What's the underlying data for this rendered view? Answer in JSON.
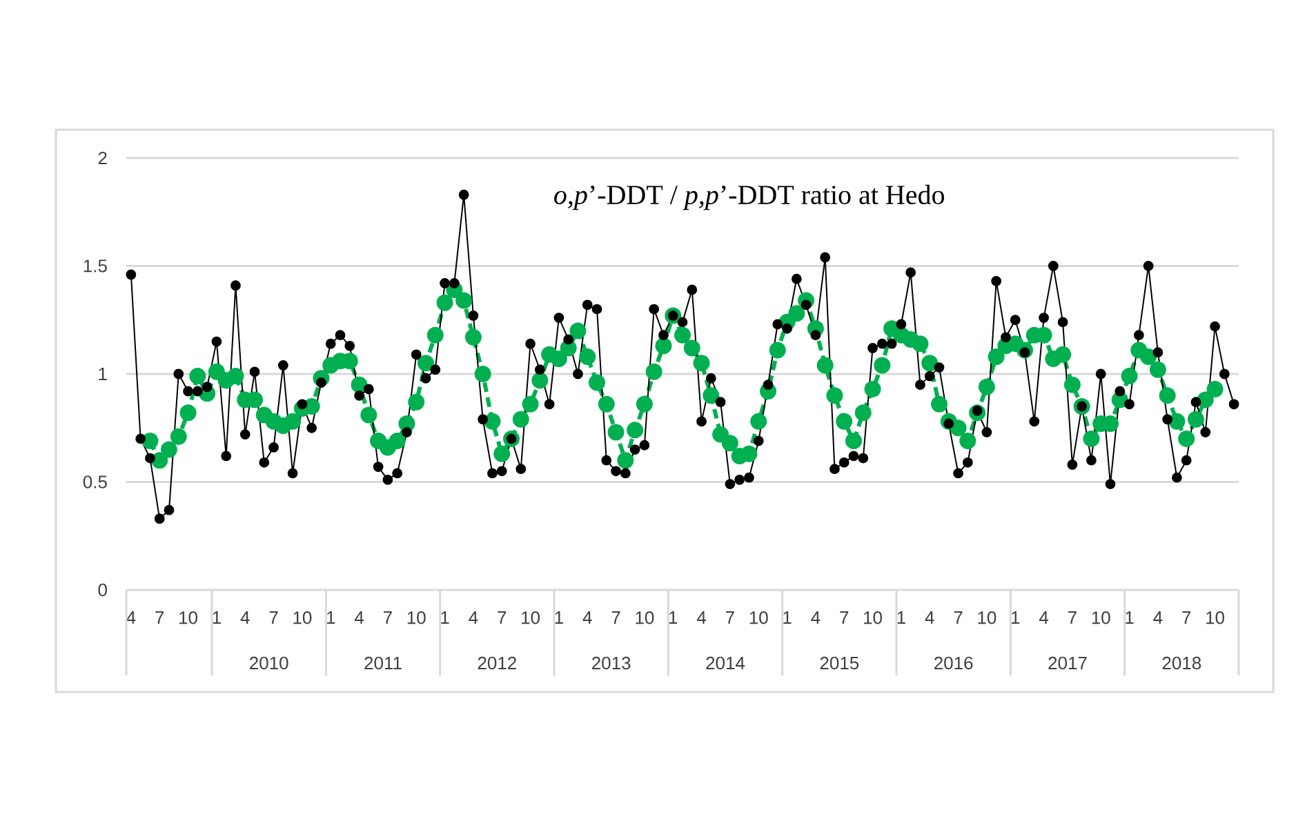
{
  "chart_data": {
    "type": "line",
    "title": "*o,p*’-DDT / *p,p*’-DDT ratio at Hedo",
    "categories": [
      "4",
      null,
      null,
      "7",
      null,
      null,
      "10",
      null,
      null,
      "1",
      null,
      null,
      "4",
      null,
      null,
      "7",
      null,
      null,
      "10",
      null,
      null,
      "1",
      null,
      null,
      "4",
      null,
      null,
      "7",
      null,
      null,
      "10",
      null,
      null,
      "1",
      null,
      null,
      "4",
      null,
      null,
      "7",
      null,
      null,
      "10",
      null,
      null,
      "1",
      null,
      null,
      "4",
      null,
      null,
      "7",
      null,
      null,
      "10",
      null,
      null,
      "1",
      null,
      null,
      "4",
      null,
      null,
      "7",
      null,
      null,
      "10",
      null,
      null,
      "1",
      null,
      null,
      "4",
      null,
      null,
      "7",
      null,
      null,
      "10",
      null,
      null,
      "1",
      null,
      null,
      "4",
      null,
      null,
      "7",
      null,
      null,
      "10",
      null,
      null,
      "1",
      null,
      null,
      "4",
      null,
      null,
      "7",
      null,
      null,
      "10",
      null,
      null,
      "1",
      null,
      null,
      "4",
      null,
      null,
      "7",
      null,
      null,
      "10",
      null,
      null
    ],
    "series": [
      {
        "color": "#000000",
        "marker": "circle",
        "line_style": "solid",
        "values": [
          1.46,
          0.7,
          0.61,
          0.33,
          0.37,
          1.0,
          0.92,
          0.92,
          0.94,
          1.15,
          0.62,
          1.41,
          0.72,
          1.01,
          0.59,
          0.66,
          1.04,
          0.54,
          0.86,
          0.75,
          0.96,
          1.14,
          1.18,
          1.13,
          0.9,
          0.93,
          0.57,
          0.51,
          0.54,
          0.73,
          1.09,
          0.98,
          1.02,
          1.42,
          1.42,
          1.83,
          1.27,
          0.79,
          0.54,
          0.55,
          0.7,
          0.56,
          1.14,
          1.02,
          0.86,
          1.26,
          1.16,
          1.0,
          1.32,
          1.3,
          0.6,
          0.55,
          0.54,
          0.65,
          0.67,
          1.3,
          1.18,
          1.27,
          1.24,
          1.39,
          0.78,
          0.98,
          0.87,
          0.49,
          0.51,
          0.52,
          0.69,
          0.95,
          1.23,
          1.21,
          1.44,
          1.32,
          1.18,
          1.54,
          0.56,
          0.59,
          0.62,
          0.61,
          1.12,
          1.14,
          1.14,
          1.23,
          1.47,
          0.95,
          0.99,
          1.03,
          0.77,
          0.54,
          0.59,
          0.83,
          0.73,
          1.43,
          1.17,
          1.25,
          1.1,
          0.78,
          1.26,
          1.5,
          1.24,
          0.58,
          0.85,
          0.6,
          1.0,
          0.49,
          0.92,
          0.86,
          1.18,
          1.5,
          1.1,
          0.79,
          0.52,
          0.6,
          0.87,
          0.73,
          1.22,
          1.0,
          0.86
        ]
      },
      {
        "color": "#00b050",
        "marker": "circle",
        "line_style": "dashed",
        "values": [
          null,
          null,
          0.69,
          0.6,
          0.65,
          0.71,
          0.82,
          0.99,
          0.91,
          1.01,
          0.97,
          0.99,
          0.88,
          0.88,
          0.81,
          0.78,
          0.76,
          0.78,
          0.84,
          0.85,
          0.98,
          1.04,
          1.06,
          1.06,
          0.95,
          0.81,
          0.69,
          0.66,
          0.69,
          0.77,
          0.87,
          1.05,
          1.18,
          1.33,
          1.39,
          1.34,
          1.17,
          1.0,
          0.78,
          0.63,
          0.7,
          0.79,
          0.86,
          0.97,
          1.09,
          1.07,
          1.12,
          1.2,
          1.08,
          0.96,
          0.86,
          0.73,
          0.6,
          0.74,
          0.86,
          1.01,
          1.13,
          1.27,
          1.18,
          1.12,
          1.05,
          0.9,
          0.72,
          0.68,
          0.62,
          0.63,
          0.78,
          0.92,
          1.11,
          1.24,
          1.28,
          1.34,
          1.21,
          1.04,
          0.9,
          0.78,
          0.69,
          0.82,
          0.93,
          1.04,
          1.21,
          1.18,
          1.16,
          1.14,
          1.05,
          0.86,
          0.78,
          0.75,
          0.69,
          0.82,
          0.94,
          1.08,
          1.13,
          1.14,
          1.11,
          1.18,
          1.18,
          1.07,
          1.09,
          0.95,
          0.85,
          0.7,
          0.77,
          0.77,
          0.88,
          0.99,
          1.11,
          1.08,
          1.02,
          0.9,
          0.78,
          0.7,
          0.79,
          0.88,
          0.93,
          null,
          null
        ]
      }
    ],
    "ylim": [
      0,
      2
    ],
    "yticks": [
      0,
      0.5,
      1,
      1.5,
      2
    ],
    "grid": "y",
    "annotations": [
      "2010",
      "2011",
      "2012",
      "2013",
      "2014",
      "2015",
      "2016",
      "2017",
      "2018"
    ]
  }
}
